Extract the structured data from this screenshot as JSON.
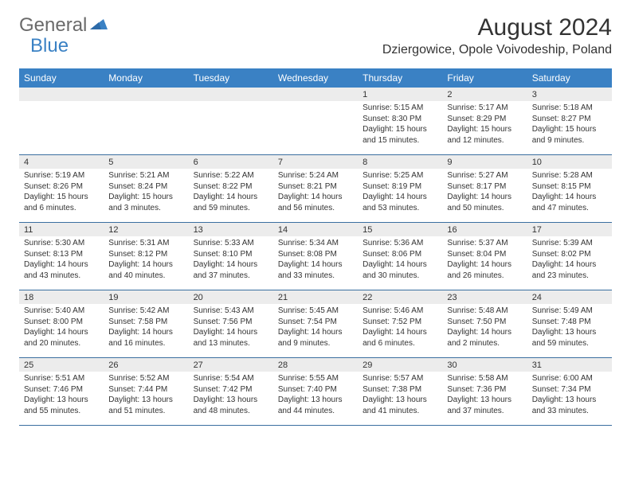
{
  "logo": {
    "text1": "General",
    "text2": "Blue"
  },
  "title": "August 2024",
  "location": "Dziergowice, Opole Voivodeship, Poland",
  "colors": {
    "header_bg": "#3a81c4",
    "header_text": "#ffffff",
    "date_bar_bg": "#ececec",
    "week_border": "#3a6fa0",
    "body_text": "#333333",
    "logo_gray": "#6a6a6a",
    "logo_blue": "#3a81c4"
  },
  "day_names": [
    "Sunday",
    "Monday",
    "Tuesday",
    "Wednesday",
    "Thursday",
    "Friday",
    "Saturday"
  ],
  "weeks": [
    [
      {
        "date": "",
        "sunrise": "",
        "sunset": "",
        "daylight": ""
      },
      {
        "date": "",
        "sunrise": "",
        "sunset": "",
        "daylight": ""
      },
      {
        "date": "",
        "sunrise": "",
        "sunset": "",
        "daylight": ""
      },
      {
        "date": "",
        "sunrise": "",
        "sunset": "",
        "daylight": ""
      },
      {
        "date": "1",
        "sunrise": "Sunrise: 5:15 AM",
        "sunset": "Sunset: 8:30 PM",
        "daylight": "Daylight: 15 hours and 15 minutes."
      },
      {
        "date": "2",
        "sunrise": "Sunrise: 5:17 AM",
        "sunset": "Sunset: 8:29 PM",
        "daylight": "Daylight: 15 hours and 12 minutes."
      },
      {
        "date": "3",
        "sunrise": "Sunrise: 5:18 AM",
        "sunset": "Sunset: 8:27 PM",
        "daylight": "Daylight: 15 hours and 9 minutes."
      }
    ],
    [
      {
        "date": "4",
        "sunrise": "Sunrise: 5:19 AM",
        "sunset": "Sunset: 8:26 PM",
        "daylight": "Daylight: 15 hours and 6 minutes."
      },
      {
        "date": "5",
        "sunrise": "Sunrise: 5:21 AM",
        "sunset": "Sunset: 8:24 PM",
        "daylight": "Daylight: 15 hours and 3 minutes."
      },
      {
        "date": "6",
        "sunrise": "Sunrise: 5:22 AM",
        "sunset": "Sunset: 8:22 PM",
        "daylight": "Daylight: 14 hours and 59 minutes."
      },
      {
        "date": "7",
        "sunrise": "Sunrise: 5:24 AM",
        "sunset": "Sunset: 8:21 PM",
        "daylight": "Daylight: 14 hours and 56 minutes."
      },
      {
        "date": "8",
        "sunrise": "Sunrise: 5:25 AM",
        "sunset": "Sunset: 8:19 PM",
        "daylight": "Daylight: 14 hours and 53 minutes."
      },
      {
        "date": "9",
        "sunrise": "Sunrise: 5:27 AM",
        "sunset": "Sunset: 8:17 PM",
        "daylight": "Daylight: 14 hours and 50 minutes."
      },
      {
        "date": "10",
        "sunrise": "Sunrise: 5:28 AM",
        "sunset": "Sunset: 8:15 PM",
        "daylight": "Daylight: 14 hours and 47 minutes."
      }
    ],
    [
      {
        "date": "11",
        "sunrise": "Sunrise: 5:30 AM",
        "sunset": "Sunset: 8:13 PM",
        "daylight": "Daylight: 14 hours and 43 minutes."
      },
      {
        "date": "12",
        "sunrise": "Sunrise: 5:31 AM",
        "sunset": "Sunset: 8:12 PM",
        "daylight": "Daylight: 14 hours and 40 minutes."
      },
      {
        "date": "13",
        "sunrise": "Sunrise: 5:33 AM",
        "sunset": "Sunset: 8:10 PM",
        "daylight": "Daylight: 14 hours and 37 minutes."
      },
      {
        "date": "14",
        "sunrise": "Sunrise: 5:34 AM",
        "sunset": "Sunset: 8:08 PM",
        "daylight": "Daylight: 14 hours and 33 minutes."
      },
      {
        "date": "15",
        "sunrise": "Sunrise: 5:36 AM",
        "sunset": "Sunset: 8:06 PM",
        "daylight": "Daylight: 14 hours and 30 minutes."
      },
      {
        "date": "16",
        "sunrise": "Sunrise: 5:37 AM",
        "sunset": "Sunset: 8:04 PM",
        "daylight": "Daylight: 14 hours and 26 minutes."
      },
      {
        "date": "17",
        "sunrise": "Sunrise: 5:39 AM",
        "sunset": "Sunset: 8:02 PM",
        "daylight": "Daylight: 14 hours and 23 minutes."
      }
    ],
    [
      {
        "date": "18",
        "sunrise": "Sunrise: 5:40 AM",
        "sunset": "Sunset: 8:00 PM",
        "daylight": "Daylight: 14 hours and 20 minutes."
      },
      {
        "date": "19",
        "sunrise": "Sunrise: 5:42 AM",
        "sunset": "Sunset: 7:58 PM",
        "daylight": "Daylight: 14 hours and 16 minutes."
      },
      {
        "date": "20",
        "sunrise": "Sunrise: 5:43 AM",
        "sunset": "Sunset: 7:56 PM",
        "daylight": "Daylight: 14 hours and 13 minutes."
      },
      {
        "date": "21",
        "sunrise": "Sunrise: 5:45 AM",
        "sunset": "Sunset: 7:54 PM",
        "daylight": "Daylight: 14 hours and 9 minutes."
      },
      {
        "date": "22",
        "sunrise": "Sunrise: 5:46 AM",
        "sunset": "Sunset: 7:52 PM",
        "daylight": "Daylight: 14 hours and 6 minutes."
      },
      {
        "date": "23",
        "sunrise": "Sunrise: 5:48 AM",
        "sunset": "Sunset: 7:50 PM",
        "daylight": "Daylight: 14 hours and 2 minutes."
      },
      {
        "date": "24",
        "sunrise": "Sunrise: 5:49 AM",
        "sunset": "Sunset: 7:48 PM",
        "daylight": "Daylight: 13 hours and 59 minutes."
      }
    ],
    [
      {
        "date": "25",
        "sunrise": "Sunrise: 5:51 AM",
        "sunset": "Sunset: 7:46 PM",
        "daylight": "Daylight: 13 hours and 55 minutes."
      },
      {
        "date": "26",
        "sunrise": "Sunrise: 5:52 AM",
        "sunset": "Sunset: 7:44 PM",
        "daylight": "Daylight: 13 hours and 51 minutes."
      },
      {
        "date": "27",
        "sunrise": "Sunrise: 5:54 AM",
        "sunset": "Sunset: 7:42 PM",
        "daylight": "Daylight: 13 hours and 48 minutes."
      },
      {
        "date": "28",
        "sunrise": "Sunrise: 5:55 AM",
        "sunset": "Sunset: 7:40 PM",
        "daylight": "Daylight: 13 hours and 44 minutes."
      },
      {
        "date": "29",
        "sunrise": "Sunrise: 5:57 AM",
        "sunset": "Sunset: 7:38 PM",
        "daylight": "Daylight: 13 hours and 41 minutes."
      },
      {
        "date": "30",
        "sunrise": "Sunrise: 5:58 AM",
        "sunset": "Sunset: 7:36 PM",
        "daylight": "Daylight: 13 hours and 37 minutes."
      },
      {
        "date": "31",
        "sunrise": "Sunrise: 6:00 AM",
        "sunset": "Sunset: 7:34 PM",
        "daylight": "Daylight: 13 hours and 33 minutes."
      }
    ]
  ]
}
